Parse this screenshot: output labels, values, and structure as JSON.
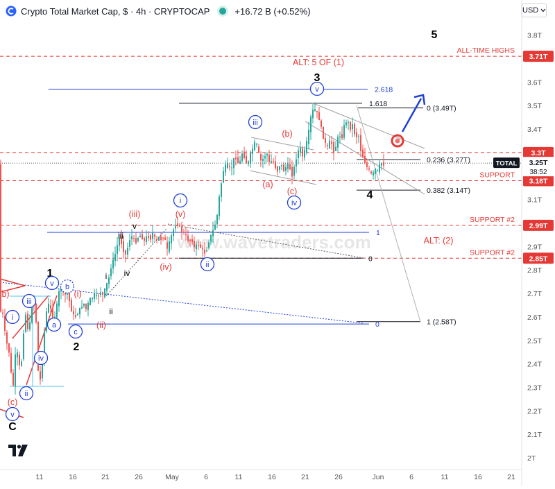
{
  "header": {
    "title": "Crypto Total Market Cap, $ · 4h · CRYPTOCAP",
    "change": "+16.72 B (+0.52%)",
    "currency": "USD"
  },
  "watermark": "www.wavetraders.com",
  "icons": [
    "cryptocap-logo-icon",
    "market-open-dot-icon",
    "chevron-down-icon",
    "tradingview-logo-icon",
    "auto-scale-icon"
  ],
  "colors": {
    "bull": "#26a69a",
    "bear": "#ef5350",
    "wave_red": "#e53935",
    "wave_blue": "#1e3fd6",
    "support_dash": "#e53935",
    "level_line": "#131722"
  },
  "chart_data": {
    "type": "candlestick",
    "title": "Crypto Total Market Cap, $ · 4h · CRYPTOCAP",
    "y_unit": "T USD",
    "ylim": [
      1.98,
      3.93
    ],
    "y_ticks": [
      "2T",
      "2.1T",
      "2.2T",
      "2.3T",
      "2.4T",
      "2.5T",
      "2.6T",
      "2.7T",
      "2.8T",
      "2.9T",
      "3T",
      "3.1T",
      "3.2T",
      "3.3T",
      "3.4T",
      "3.5T",
      "3.6T",
      "3.7T",
      "3.8T"
    ],
    "x_ticks": [
      "11",
      "16",
      "21",
      "26",
      "May",
      "6",
      "11",
      "16",
      "21",
      "26",
      "Jun",
      "6",
      "11",
      "16",
      "21"
    ],
    "grid": false,
    "current_price": {
      "label": "TOTAL",
      "value": "3.25T",
      "countdown": "38:52"
    },
    "price_path": [
      [
        0,
        2.66
      ],
      [
        4,
        2.6
      ],
      [
        7,
        2.62
      ],
      [
        10,
        2.45
      ],
      [
        13,
        2.52
      ],
      [
        16,
        2.38
      ],
      [
        19,
        2.34
      ],
      [
        21,
        2.3
      ],
      [
        24,
        2.46
      ],
      [
        27,
        2.44
      ],
      [
        30,
        2.38
      ],
      [
        33,
        2.42
      ],
      [
        36,
        2.56
      ],
      [
        39,
        2.62
      ],
      [
        42,
        2.54
      ],
      [
        44,
        2.55
      ],
      [
        47,
        2.68
      ],
      [
        50,
        2.66
      ],
      [
        53,
        2.62
      ],
      [
        56,
        2.38
      ],
      [
        58,
        2.34
      ],
      [
        60,
        2.33
      ],
      [
        62,
        2.4
      ],
      [
        66,
        2.56
      ],
      [
        70,
        2.66
      ],
      [
        74,
        2.64
      ],
      [
        78,
        2.58
      ],
      [
        82,
        2.62
      ],
      [
        86,
        2.7
      ],
      [
        90,
        2.74
      ],
      [
        94,
        2.68
      ],
      [
        98,
        2.72
      ],
      [
        102,
        2.66
      ],
      [
        106,
        2.61
      ],
      [
        110,
        2.6
      ],
      [
        114,
        2.62
      ],
      [
        118,
        2.64
      ],
      [
        122,
        2.66
      ],
      [
        126,
        2.63
      ],
      [
        130,
        2.67
      ],
      [
        134,
        2.68
      ],
      [
        138,
        2.7
      ],
      [
        142,
        2.68
      ],
      [
        146,
        2.71
      ],
      [
        150,
        2.69
      ],
      [
        154,
        2.73
      ],
      [
        158,
        2.76
      ],
      [
        162,
        2.82
      ],
      [
        166,
        2.85
      ],
      [
        170,
        2.9
      ],
      [
        174,
        2.94
      ],
      [
        178,
        2.9
      ],
      [
        182,
        2.86
      ],
      [
        186,
        2.9
      ],
      [
        190,
        2.95
      ],
      [
        194,
        2.93
      ],
      [
        198,
        2.92
      ],
      [
        202,
        2.95
      ],
      [
        206,
        2.94
      ],
      [
        210,
        2.92
      ],
      [
        214,
        2.95
      ],
      [
        218,
        2.93
      ],
      [
        222,
        2.96
      ],
      [
        226,
        2.92
      ],
      [
        230,
        2.94
      ],
      [
        234,
        2.93
      ],
      [
        238,
        2.95
      ],
      [
        242,
        2.88
      ],
      [
        246,
        2.92
      ],
      [
        250,
        2.96
      ],
      [
        254,
        2.99
      ],
      [
        258,
        3.0
      ],
      [
        262,
        2.97
      ],
      [
        266,
        2.96
      ],
      [
        270,
        2.94
      ],
      [
        274,
        2.92
      ],
      [
        278,
        2.93
      ],
      [
        282,
        2.89
      ],
      [
        286,
        2.91
      ],
      [
        290,
        2.9
      ],
      [
        294,
        2.88
      ],
      [
        298,
        2.87
      ],
      [
        302,
        2.92
      ],
      [
        306,
        2.95
      ],
      [
        310,
        2.98
      ],
      [
        314,
        3.02
      ],
      [
        317,
        3.1
      ],
      [
        320,
        3.16
      ],
      [
        323,
        3.22
      ],
      [
        326,
        3.24
      ],
      [
        330,
        3.25
      ],
      [
        334,
        3.22
      ],
      [
        338,
        3.27
      ],
      [
        342,
        3.28
      ],
      [
        346,
        3.24
      ],
      [
        350,
        3.3
      ],
      [
        354,
        3.28
      ],
      [
        358,
        3.24
      ],
      [
        362,
        3.29
      ],
      [
        366,
        3.32
      ],
      [
        370,
        3.35
      ],
      [
        374,
        3.3
      ],
      [
        378,
        3.26
      ],
      [
        382,
        3.28
      ],
      [
        386,
        3.3
      ],
      [
        390,
        3.25
      ],
      [
        394,
        3.27
      ],
      [
        398,
        3.24
      ],
      [
        402,
        3.22
      ],
      [
        406,
        3.26
      ],
      [
        410,
        3.22
      ],
      [
        414,
        3.24
      ],
      [
        418,
        3.25
      ],
      [
        422,
        3.2
      ],
      [
        426,
        3.24
      ],
      [
        430,
        3.3
      ],
      [
        434,
        3.32
      ],
      [
        438,
        3.28
      ],
      [
        442,
        3.32
      ],
      [
        446,
        3.38
      ],
      [
        450,
        3.46
      ],
      [
        454,
        3.49
      ],
      [
        458,
        3.47
      ],
      [
        462,
        3.44
      ],
      [
        466,
        3.38
      ],
      [
        470,
        3.34
      ],
      [
        474,
        3.32
      ],
      [
        478,
        3.36
      ],
      [
        482,
        3.3
      ],
      [
        486,
        3.33
      ],
      [
        490,
        3.38
      ],
      [
        494,
        3.36
      ],
      [
        498,
        3.42
      ],
      [
        502,
        3.44
      ],
      [
        506,
        3.4
      ],
      [
        510,
        3.42
      ],
      [
        514,
        3.36
      ],
      [
        518,
        3.38
      ],
      [
        522,
        3.3
      ],
      [
        526,
        3.27
      ],
      [
        530,
        3.24
      ],
      [
        534,
        3.22
      ],
      [
        538,
        3.2
      ],
      [
        542,
        3.23
      ],
      [
        546,
        3.22
      ],
      [
        550,
        3.26
      ],
      [
        553,
        3.25
      ]
    ],
    "levels": [
      {
        "label": "ALL-TIME HIGHS",
        "value": "3.71T",
        "y": 3.71,
        "style": "red-dash"
      },
      {
        "label": "",
        "value": "3.3T",
        "y": 3.3,
        "style": "red-dash"
      },
      {
        "label": "SUPPORT",
        "value": "3.18T",
        "y": 3.18,
        "style": "red-dash"
      },
      {
        "label": "SUPPORT #2",
        "value": "2.99T",
        "y": 2.99,
        "style": "red-dash"
      },
      {
        "label": "SUPPORT #2",
        "value": "2.85T",
        "y": 2.85,
        "style": "red-dash"
      }
    ],
    "fib_left": [
      {
        "label": "2.618",
        "y": 3.57,
        "color": "blue"
      },
      {
        "label": "1.618",
        "y": 3.51,
        "color": "black"
      },
      {
        "label": "1",
        "y": 2.96,
        "color": "blue"
      },
      {
        "label": "0",
        "y": 2.85,
        "color": "black"
      },
      {
        "label": "0",
        "y": 2.57,
        "color": "blue"
      }
    ],
    "fib_right": [
      {
        "label": "0 (3.49T)",
        "y": 3.49
      },
      {
        "label": "0.236 (3.27T)",
        "y": 3.27
      },
      {
        "label": "0.382 (3.14T)",
        "y": 3.14
      },
      {
        "label": "1 (2.58T)",
        "y": 2.58
      }
    ],
    "wave_labels": [
      {
        "text": "5",
        "color": "black",
        "style": "big"
      },
      {
        "text": "ALT: 5 OF (1)",
        "color": "red",
        "style": "plain"
      },
      {
        "text": "3",
        "color": "black",
        "style": "big"
      },
      {
        "text": "v",
        "color": "blue",
        "style": "circle"
      },
      {
        "text": "iii",
        "color": "blue",
        "style": "circle"
      },
      {
        "text": "(b)",
        "color": "red",
        "style": "plain"
      },
      {
        "text": "(a)",
        "color": "red",
        "style": "plain"
      },
      {
        "text": "(c)",
        "color": "red",
        "style": "plain"
      },
      {
        "text": "iv",
        "color": "blue",
        "style": "circle"
      },
      {
        "text": "4",
        "color": "black",
        "style": "big"
      },
      {
        "text": "i",
        "color": "blue",
        "style": "circle"
      },
      {
        "text": "(v)",
        "color": "red",
        "style": "plain"
      },
      {
        "text": "(iii)",
        "color": "red",
        "style": "plain"
      },
      {
        "text": "v",
        "color": "black",
        "style": "small"
      },
      {
        "text": "iii",
        "color": "black",
        "style": "small"
      },
      {
        "text": "i",
        "color": "black",
        "style": "small"
      },
      {
        "text": "iv",
        "color": "black",
        "style": "small"
      },
      {
        "text": "(iv)",
        "color": "red",
        "style": "plain"
      },
      {
        "text": "ii",
        "color": "blue",
        "style": "circle"
      },
      {
        "text": "ALT: (2)",
        "color": "red",
        "style": "plain"
      },
      {
        "text": "1",
        "color": "black",
        "style": "big"
      },
      {
        "text": "v",
        "color": "blue",
        "style": "circle"
      },
      {
        "text": "b",
        "color": "blue",
        "style": "circle-dashed"
      },
      {
        "text": "iii",
        "color": "blue",
        "style": "circle"
      },
      {
        "text": "(i)",
        "color": "red",
        "style": "plain"
      },
      {
        "text": "i",
        "color": "blue",
        "style": "circle"
      },
      {
        "text": "a",
        "color": "blue",
        "style": "circle"
      },
      {
        "text": "ii",
        "color": "black",
        "style": "small"
      },
      {
        "text": "(ii)",
        "color": "red",
        "style": "plain"
      },
      {
        "text": "c",
        "color": "blue",
        "style": "circle"
      },
      {
        "text": "2",
        "color": "black",
        "style": "big"
      },
      {
        "text": "iv",
        "color": "blue",
        "style": "circle"
      },
      {
        "text": "ii",
        "color": "blue",
        "style": "circle"
      },
      {
        "text": "(c)",
        "color": "red",
        "style": "plain"
      },
      {
        "text": "v",
        "color": "blue",
        "style": "circle"
      },
      {
        "text": "C",
        "color": "black",
        "style": "big"
      },
      {
        "text": "b)",
        "color": "red",
        "style": "plain"
      }
    ]
  }
}
